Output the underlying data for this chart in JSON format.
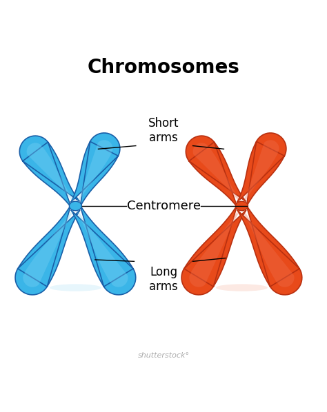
{
  "title": "Chromosomes",
  "title_fontsize": 20,
  "title_fontweight": "bold",
  "bg_color": "#ffffff",
  "blue_fill": "#3ab5e8",
  "blue_edge": "#1a5fa8",
  "blue_highlight": "#7dd4f5",
  "red_fill": "#e84a1a",
  "red_edge": "#b83010",
  "red_highlight": "#f07050",
  "labels": {
    "short_arms": "Short\narms",
    "centromere": "Centromere",
    "long_arms": "Long\narms"
  },
  "label_fontsize": 12,
  "fig_width": 4.74,
  "fig_height": 5.98,
  "dpi": 100
}
